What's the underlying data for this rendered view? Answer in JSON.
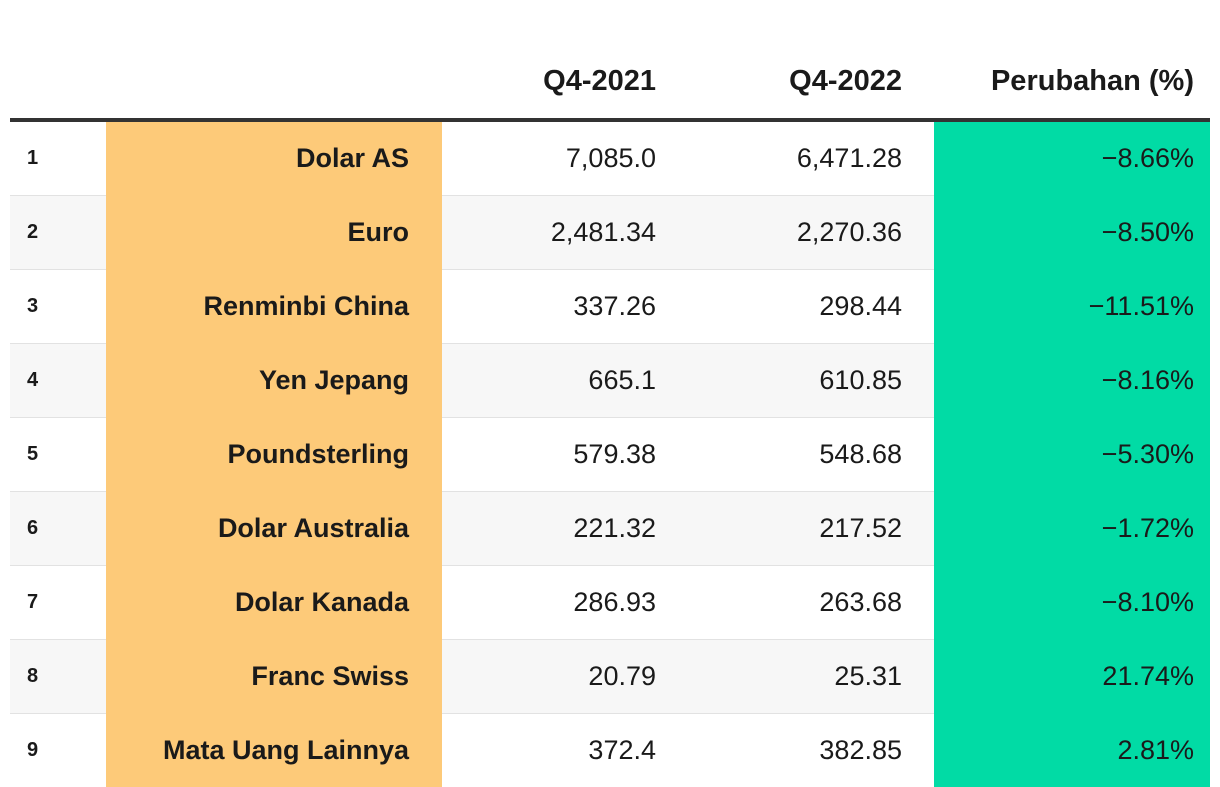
{
  "chart_data": {
    "type": "table",
    "columns": [
      "",
      "",
      "Q4-2021",
      "Q4-2022",
      "Perubahan (%)"
    ],
    "rows": [
      {
        "rank": "1",
        "name": "Dolar AS",
        "q4_2021": "7,085.0",
        "q4_2022": "6,471.28",
        "change": "−8.66%"
      },
      {
        "rank": "2",
        "name": "Euro",
        "q4_2021": "2,481.34",
        "q4_2022": "2,270.36",
        "change": "−8.50%"
      },
      {
        "rank": "3",
        "name": "Renminbi China",
        "q4_2021": "337.26",
        "q4_2022": "298.44",
        "change": "−11.51%"
      },
      {
        "rank": "4",
        "name": "Yen Jepang",
        "q4_2021": "665.1",
        "q4_2022": "610.85",
        "change": "−8.16%"
      },
      {
        "rank": "5",
        "name": "Poundsterling",
        "q4_2021": "579.38",
        "q4_2022": "548.68",
        "change": "−5.30%"
      },
      {
        "rank": "6",
        "name": "Dolar Australia",
        "q4_2021": "221.32",
        "q4_2022": "217.52",
        "change": "−1.72%"
      },
      {
        "rank": "7",
        "name": "Dolar Kanada",
        "q4_2021": "286.93",
        "q4_2022": "263.68",
        "change": "−8.10%"
      },
      {
        "rank": "8",
        "name": "Franc Swiss",
        "q4_2021": "20.79",
        "q4_2022": "25.31",
        "change": "21.74%"
      },
      {
        "rank": "9",
        "name": "Mata Uang Lainnya",
        "q4_2021": "372.4",
        "q4_2022": "382.85",
        "change": "2.81%"
      }
    ],
    "colors": {
      "name_column": "#fdca79",
      "change_column": "#01dba5",
      "stripe": "#f7f7f7",
      "header_rule": "#333333"
    }
  }
}
